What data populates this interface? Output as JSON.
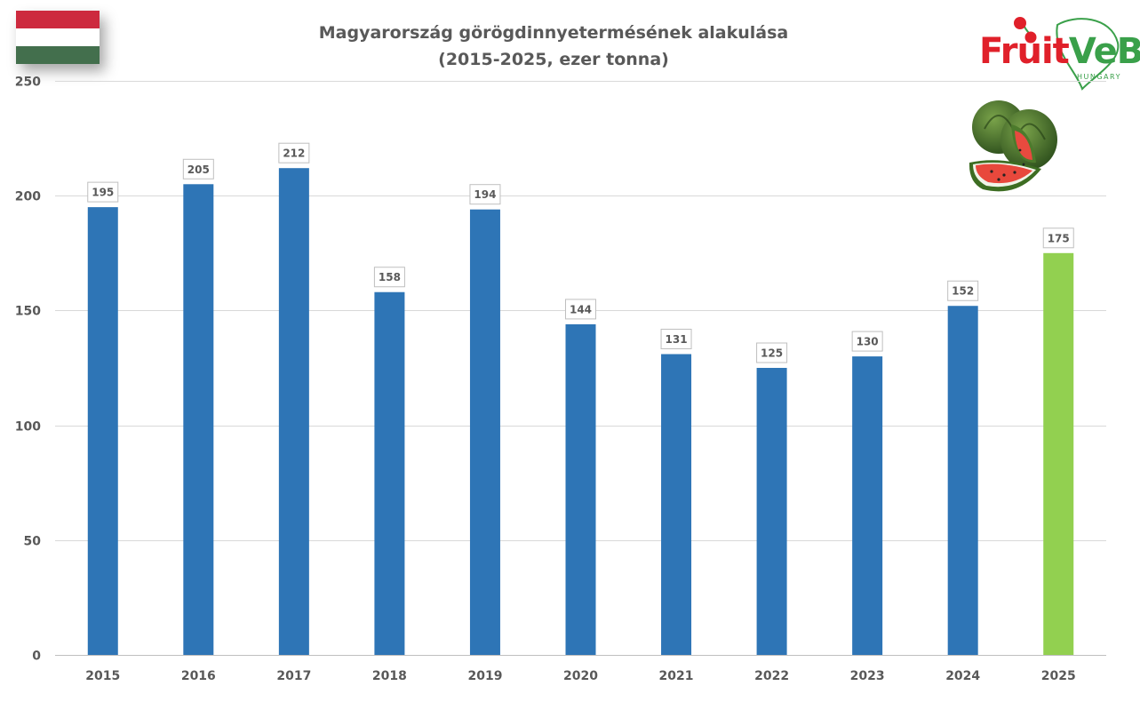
{
  "chart_data": {
    "type": "bar",
    "title": "Magyarország görögdinnyetermésének alakulása",
    "subtitle": "(2015-2025, ezer tonna)",
    "categories": [
      "2015",
      "2016",
      "2017",
      "2018",
      "2019",
      "2020",
      "2021",
      "2022",
      "2023",
      "2024",
      "2025"
    ],
    "values": [
      195,
      205,
      212,
      158,
      194,
      144,
      131,
      125,
      130,
      152,
      175
    ],
    "ylim": [
      0,
      250
    ],
    "yticks": [
      0,
      50,
      100,
      150,
      200,
      250
    ],
    "grid": true,
    "data_labels": true,
    "colors": {
      "bar": "#2e75b6",
      "highlight_bar": "#92d050",
      "highlight_category": "2025",
      "grid": "#d9d9d9",
      "text": "#595959"
    }
  },
  "logo": {
    "name": "FruitVeB",
    "part1": "Fruit",
    "part2": "VeB",
    "sub": "HUNGARY",
    "colors": {
      "red": "#e0202a",
      "green": "#3aa04a"
    }
  },
  "decor": {
    "flag": {
      "name": "hungary-flag",
      "colors": [
        "#cd2a3e",
        "#ffffff",
        "#436f4d"
      ]
    },
    "fruit": "watermelon-image"
  }
}
